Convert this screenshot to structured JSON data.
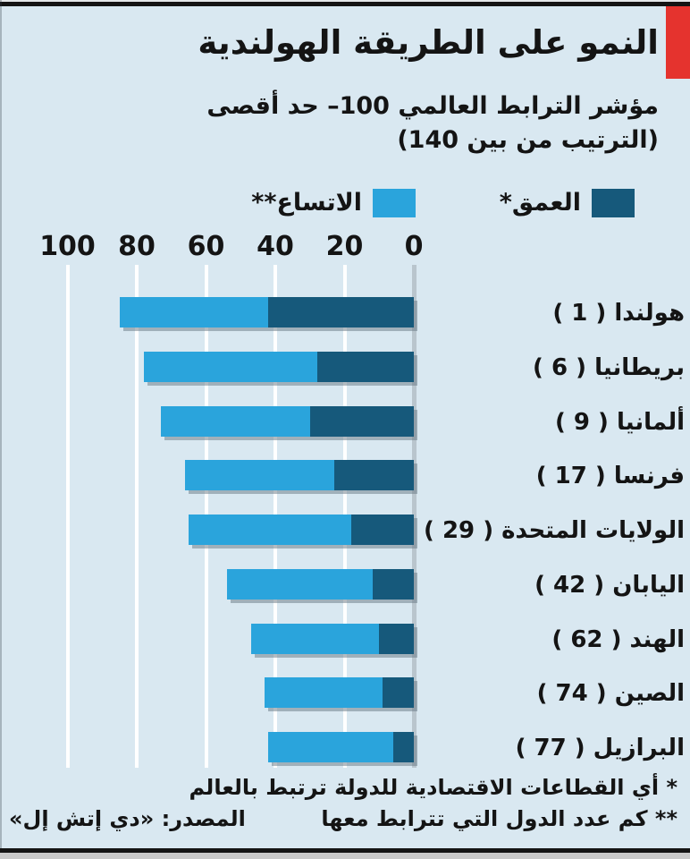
{
  "header": {
    "title": "النمو على الطريقة الهولندية",
    "subtitle_line1": "مؤشر الترابط العالمي 100– حد أقصى",
    "subtitle_line2": "(الترتيب من بين 140)"
  },
  "legend": [
    {
      "key": "depth",
      "label": "العمق*",
      "color": "#16597b"
    },
    {
      "key": "breadth",
      "label": "الاتساع**",
      "color": "#2aa4dc"
    }
  ],
  "chart_data": {
    "type": "bar",
    "stacked": true,
    "orientation": "horizontal",
    "direction": "rtl",
    "title": "النمو على الطريقة الهولندية",
    "subtitle": "مؤشر الترابط العالمي 100– حد أقصى (الترتيب من بين 140)",
    "xlim": [
      0,
      100
    ],
    "ticks": [
      0,
      20,
      40,
      60,
      80,
      100
    ],
    "grid": true,
    "legend_position": "top",
    "categories": [
      "هولندا",
      "بريطانيا",
      "ألمانيا",
      "فرنسا",
      "الولايات المتحدة",
      "اليابان",
      "الهند",
      "الصين",
      "البرازيل"
    ],
    "ranks": [
      1,
      6,
      9,
      17,
      29,
      42,
      62,
      74,
      77
    ],
    "series": [
      {
        "name": "العمق*",
        "values": [
          42,
          28,
          30,
          23,
          18,
          12,
          10,
          9,
          6
        ]
      },
      {
        "name": "الاتساع**",
        "values": [
          43,
          50,
          43,
          43,
          47,
          42,
          37,
          34,
          36
        ]
      }
    ],
    "rows": [
      {
        "country": "هولندا",
        "rank": 1,
        "depth": 42,
        "breadth": 43
      },
      {
        "country": "بريطانيا",
        "rank": 6,
        "depth": 28,
        "breadth": 50
      },
      {
        "country": "ألمانيا",
        "rank": 9,
        "depth": 30,
        "breadth": 43
      },
      {
        "country": "فرنسا",
        "rank": 17,
        "depth": 23,
        "breadth": 43
      },
      {
        "country": "الولايات المتحدة",
        "rank": 29,
        "depth": 18,
        "breadth": 47
      },
      {
        "country": "اليابان",
        "rank": 42,
        "depth": 12,
        "breadth": 42
      },
      {
        "country": "الهند",
        "rank": 62,
        "depth": 10,
        "breadth": 37
      },
      {
        "country": "الصين",
        "rank": 74,
        "depth": 9,
        "breadth": 34
      },
      {
        "country": "البرازيل",
        "rank": 77,
        "depth": 6,
        "breadth": 36
      }
    ]
  },
  "footnotes": {
    "line1": "* أي القطاعات الاقتصادية للدولة ترتبط بالعالم",
    "line2": "** كم عدد الدول التي تترابط معها",
    "source": "المصدر: «دي إتش إل»"
  },
  "colors": {
    "background": "#d9e8f1",
    "depth": "#16597b",
    "breadth": "#2aa4dc",
    "red_accent": "#e5332e",
    "text": "#141414",
    "gridline": "#ffffff",
    "zero_line": "#b9c5cd"
  }
}
